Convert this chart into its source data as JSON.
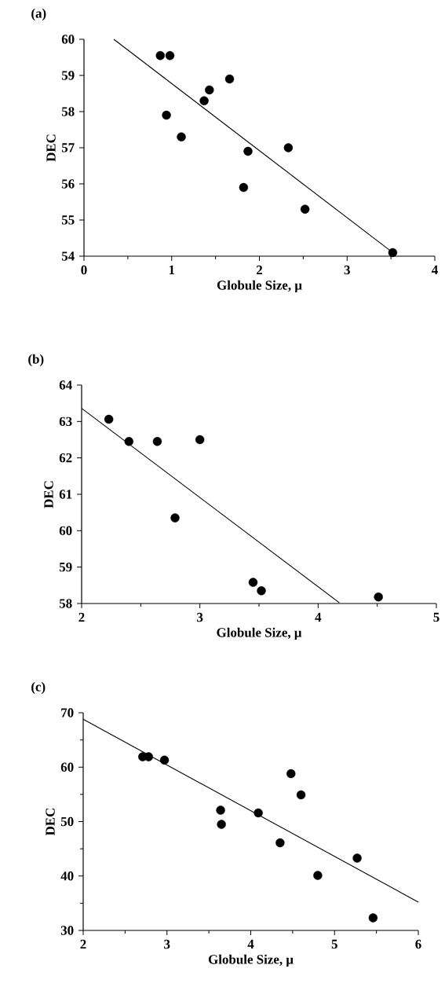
{
  "chart_data": [
    {
      "type": "scatter",
      "title": "(a)",
      "xlabel": "Globule Size, μ",
      "ylabel": "DEC",
      "xlim": [
        0,
        4
      ],
      "ylim": [
        54,
        60
      ],
      "xticks": [
        0,
        1,
        2,
        3,
        4
      ],
      "yticks": [
        54,
        55,
        56,
        57,
        58,
        59,
        60
      ],
      "marker": "circle",
      "series": [
        {
          "color": "#000000",
          "x": [
            0.87,
            0.98,
            0.94,
            1.11,
            1.37,
            1.43,
            1.66,
            1.87,
            1.82,
            2.33,
            2.52,
            3.52
          ],
          "values": [
            59.55,
            59.55,
            57.9,
            57.3,
            58.3,
            58.6,
            58.9,
            56.9,
            55.9,
            57.0,
            55.3,
            54.1
          ]
        },
        {
          "type": "line",
          "color": "#000000",
          "marker": "none",
          "x": [
            0.34,
            3.52
          ],
          "values": [
            60.0,
            54.1
          ]
        }
      ]
    },
    {
      "type": "scatter",
      "title": "(b)",
      "xlabel": "Globule Size, μ",
      "ylabel": "DEC",
      "xlim": [
        2,
        5
      ],
      "ylim": [
        58,
        64
      ],
      "xticks": [
        2,
        3,
        4,
        5
      ],
      "yticks": [
        58,
        59,
        60,
        61,
        62,
        63,
        64
      ],
      "marker": "circle",
      "series": [
        {
          "color": "#000000",
          "x": [
            2.23,
            2.4,
            2.64,
            3.0,
            2.79,
            3.45,
            3.52,
            4.51
          ],
          "values": [
            63.06,
            62.45,
            62.45,
            62.5,
            60.35,
            58.58,
            58.35,
            58.18
          ]
        },
        {
          "type": "line",
          "color": "#000000",
          "marker": "none",
          "x": [
            2.0,
            4.18
          ],
          "values": [
            63.36,
            58.02
          ]
        }
      ]
    },
    {
      "type": "scatter",
      "title": "(c)",
      "xlabel": "Globule Size, μ",
      "ylabel": "DEC",
      "xlim": [
        2,
        6
      ],
      "ylim": [
        30,
        70
      ],
      "xticks": [
        2,
        3,
        4,
        5,
        6
      ],
      "yticks": [
        30,
        40,
        50,
        60,
        70
      ],
      "marker": "circle",
      "series": [
        {
          "color": "#000000",
          "x": [
            2.71,
            2.78,
            2.97,
            4.48,
            4.6,
            3.64,
            3.65,
            4.09,
            4.35,
            4.8,
            5.27,
            5.46
          ],
          "values": [
            61.9,
            61.9,
            61.3,
            58.8,
            54.9,
            52.1,
            49.5,
            51.6,
            46.1,
            40.1,
            43.3,
            32.3
          ]
        },
        {
          "type": "line",
          "color": "#000000",
          "marker": "none",
          "x": [
            2.0,
            6.0
          ],
          "values": [
            68.8,
            35.2
          ]
        }
      ]
    }
  ]
}
